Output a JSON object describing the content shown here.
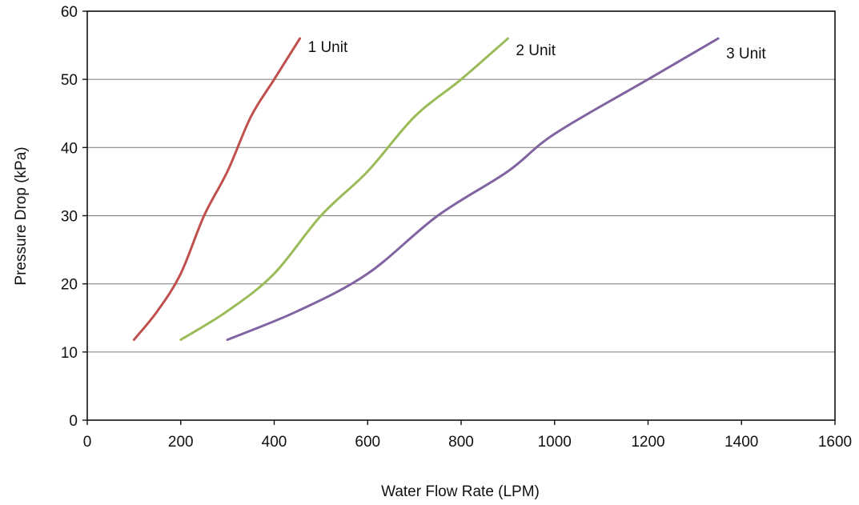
{
  "chart_data": {
    "type": "line",
    "title": "",
    "xlabel": "Water Flow Rate (LPM)",
    "ylabel": "Pressure Drop (kPa)",
    "xlim": [
      0,
      1600
    ],
    "ylim": [
      0,
      60
    ],
    "x_ticks": [
      0,
      200,
      400,
      600,
      800,
      1000,
      1200,
      1400,
      1600
    ],
    "y_ticks": [
      0,
      10,
      20,
      30,
      40,
      50,
      60
    ],
    "grid": "horizontal",
    "legend": "none",
    "series": [
      {
        "name": "1 Unit",
        "color": "#c0504d",
        "x": [
          100,
          150,
          200,
          250,
          300,
          350,
          400,
          455
        ],
        "y": [
          11.8,
          16,
          21.5,
          30,
          36.5,
          44.5,
          50,
          56
        ]
      },
      {
        "name": "2 Unit",
        "color": "#9bbb59",
        "x": [
          200,
          300,
          400,
          500,
          600,
          700,
          800,
          900
        ],
        "y": [
          11.8,
          16,
          21.5,
          30,
          36.5,
          44.5,
          50,
          56
        ]
      },
      {
        "name": "3 Unit",
        "color": "#8064a2",
        "x": [
          300,
          450,
          600,
          750,
          900,
          1000,
          1200,
          1350
        ],
        "y": [
          11.8,
          16,
          21.5,
          30,
          36.5,
          42,
          50,
          56
        ]
      }
    ]
  }
}
